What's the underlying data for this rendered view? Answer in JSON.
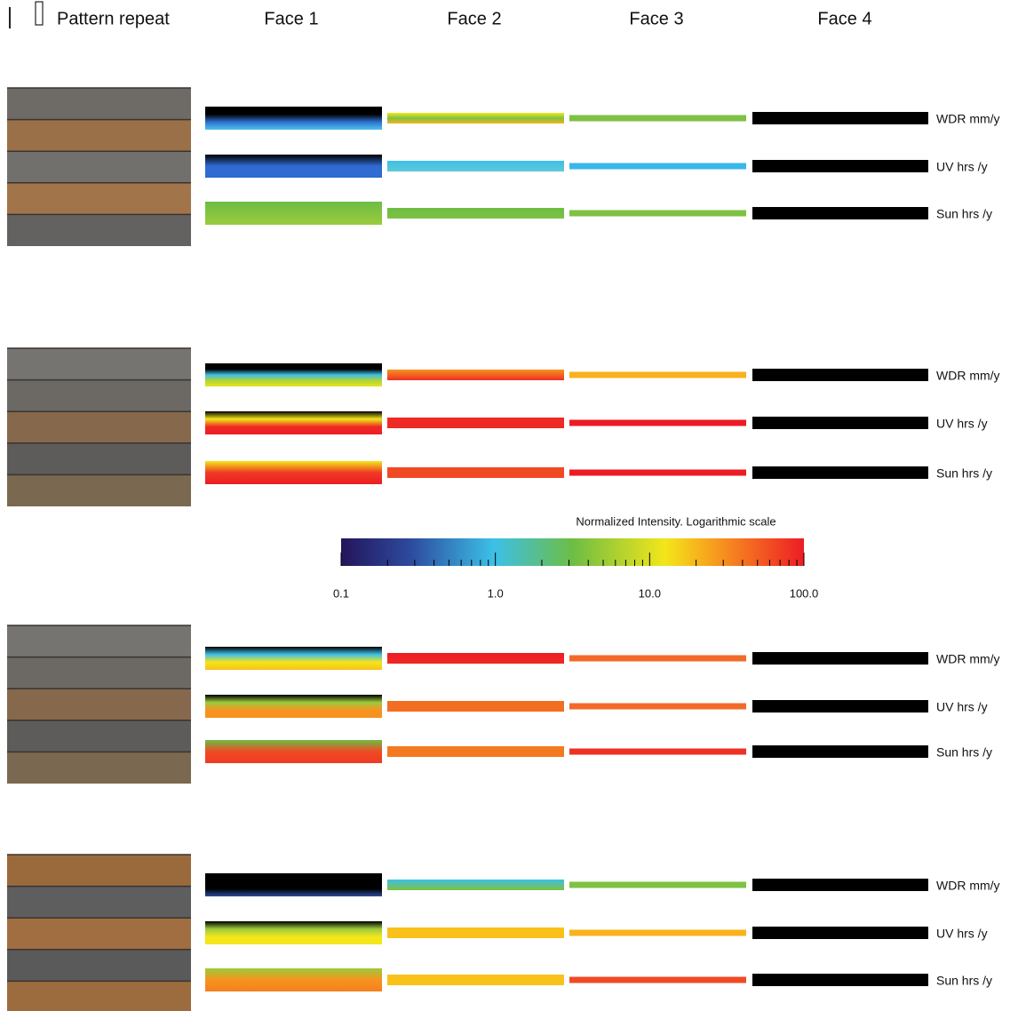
{
  "header": {
    "title": "Pattern repeat",
    "faces": [
      "Face 1",
      "Face 2",
      "Face 3",
      "Face 4"
    ]
  },
  "groups": [
    {
      "metrics": [
        "WDR mm/y",
        "UV hrs /y",
        "Sun hrs /y"
      ]
    },
    {
      "metrics": [
        "WDR mm/y",
        "UV hrs /y",
        "Sun hrs /y"
      ]
    },
    {
      "metrics": [
        "WDR mm/y",
        "UV hrs /y",
        "Sun hrs /y"
      ]
    },
    {
      "metrics": [
        "WDR mm/y",
        "UV hrs /y",
        "Sun hrs /y"
      ]
    }
  ],
  "colorbar": {
    "title": "Normalized Intensity. Logarithmic scale",
    "ticks": [
      "0.1",
      "1.0",
      "10.0",
      "100.0"
    ]
  }
}
